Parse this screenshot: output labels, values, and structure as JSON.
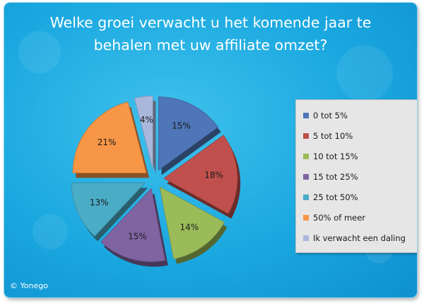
{
  "chart_data": {
    "type": "pie",
    "title": "Welke groei verwacht u het komende jaar te behalen met uw affiliate omzet?",
    "title_lines": [
      "Welke groei verwacht u het komende jaar te",
      "behalen met uw affiliate omzet?"
    ],
    "categories": [
      "0 tot 5%",
      "5 tot 10%",
      "10 tot 15%",
      "15 tot 25%",
      "25 tot 50%",
      "50% of meer",
      "Ik verwacht een daling"
    ],
    "values": [
      15,
      18,
      14,
      15,
      13,
      21,
      4
    ],
    "value_labels": [
      "15%",
      "18%",
      "14%",
      "15%",
      "13%",
      "21%",
      "4%"
    ],
    "colors": [
      "#4f76b8",
      "#c0504d",
      "#9bbb59",
      "#8064a2",
      "#4bacc6",
      "#f79646",
      "#a9b7dc"
    ],
    "legend": "right",
    "exploded": true
  },
  "credit": "© Yonego"
}
